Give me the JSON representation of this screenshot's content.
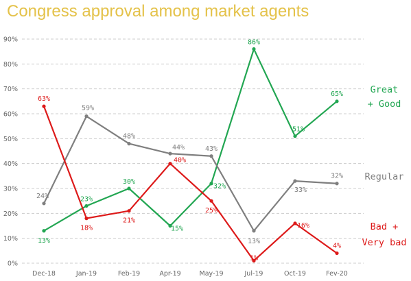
{
  "chart_data": {
    "type": "line",
    "title": "Congress approval among market agents",
    "xlabel": "",
    "ylabel": "",
    "categories": [
      "Dec-18",
      "Jan-19",
      "Feb-19",
      "Apr-19",
      "May-19",
      "Jul-19",
      "Oct-19",
      "Fev-20"
    ],
    "ylim": [
      0,
      90
    ],
    "yticks": [
      "0%",
      "10%",
      "20%",
      "30%",
      "40%",
      "50%",
      "60%",
      "70%",
      "80%",
      "90%"
    ],
    "grid": true,
    "series": [
      {
        "name_lines": [
          "Great",
          "+ Good"
        ],
        "color": "#22a652",
        "values": [
          13,
          23,
          30,
          15,
          32,
          86,
          51,
          65
        ],
        "labels": [
          "13%",
          "23%",
          "30%",
          "15%",
          "32%",
          "86%",
          "51%",
          "65%"
        ]
      },
      {
        "name_lines": [
          "Regular"
        ],
        "color": "#7f7f7f",
        "values": [
          24,
          59,
          48,
          44,
          43,
          13,
          33,
          32
        ],
        "labels": [
          "24%",
          "59%",
          "48%",
          "44%",
          "43%",
          "13%",
          "33%",
          "32%"
        ]
      },
      {
        "name_lines": [
          "Bad +",
          "Very bad"
        ],
        "color": "#dd1a1a",
        "values": [
          63,
          18,
          21,
          40,
          25,
          1,
          16,
          4
        ],
        "labels": [
          "63%",
          "18%",
          "21%",
          "40%",
          "25%",
          "1%",
          "16%",
          "4%"
        ]
      }
    ]
  },
  "colors": {
    "title": "#e4c24a",
    "grid": "#cccccc"
  }
}
